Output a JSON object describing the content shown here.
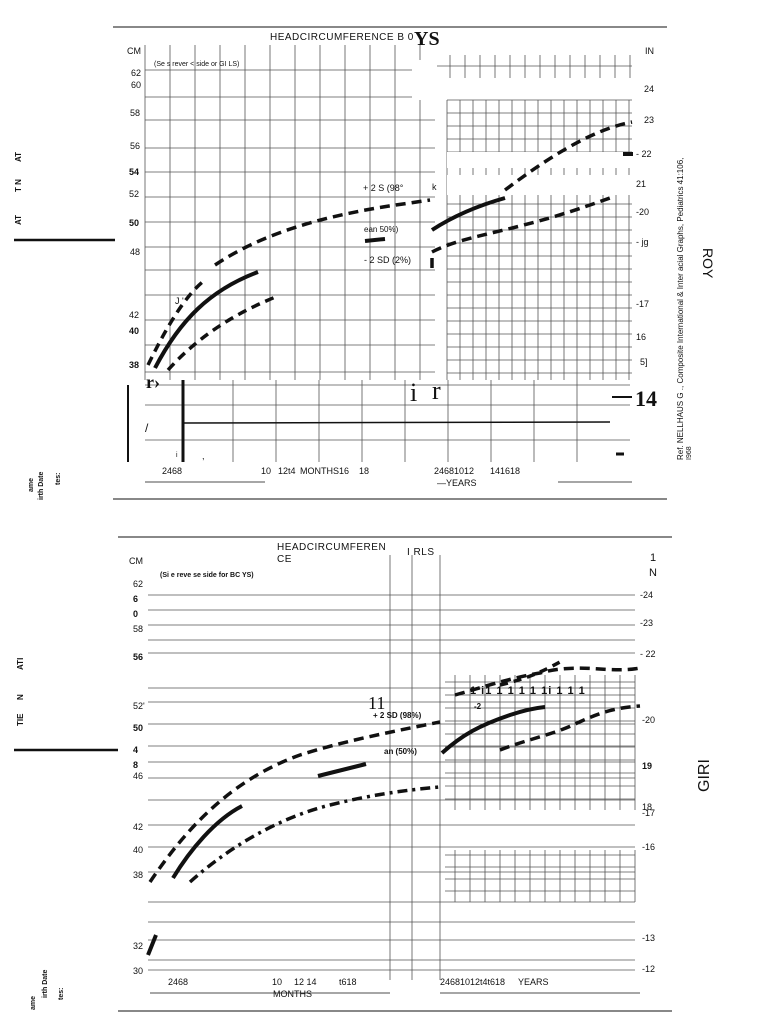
{
  "top": {
    "title": "HEADCIRCUMFERENCE B 0",
    "title_suffix": "YS",
    "unit_left": "CM",
    "unit_right": "IN",
    "note": "(Se s rever < side or GI LS)",
    "left_ticks": [
      "62",
      "60",
      "58",
      "56",
      "54",
      "52",
      "50",
      "48",
      "42",
      "40",
      "38"
    ],
    "right_ticks": [
      "24",
      "23",
      "- 22",
      "21",
      "-20",
      "- jg",
      "-17",
      "16",
      "5]",
      "14"
    ],
    "curve_labels": {
      "plus2": "+ 2 S (98°",
      "plus2_k": "k",
      "mean": "ean 50%)",
      "minus2": "- 2 SD (2%)"
    },
    "months_axis": [
      "2468",
      "10",
      "12t4",
      "MONTHS16",
      "18"
    ],
    "years_axis": [
      "24681012",
      "141618"
    ],
    "years_label": "—YEARS",
    "stray": [
      "r›",
      "i",
      "r",
      "J '",
      "/",
      "i",
      ","
    ],
    "reference": "Ref. NELLHAUS G ., Composite International & Inter acial Graphs, Pediatrics 41:106,",
    "reference_year": "I968",
    "side_label": "ROY",
    "left_margin": [
      "AT",
      "T N",
      "AT"
    ],
    "form_fields": [
      "ame",
      "irth Date",
      "tes:"
    ]
  },
  "bottom": {
    "title_line1": "HEADCIRCUMFEREN",
    "title_line2": "CE",
    "title_girls": "I RLS",
    "unit_left": "CM",
    "unit_right_1": "1",
    "unit_right_2": "N",
    "note": "(Si e reve se side for BC YS)",
    "left_ticks": [
      "62",
      "6",
      "0",
      "58",
      "56",
      "52'",
      "50",
      "4",
      "8",
      "46",
      "42",
      "40",
      "38",
      "32",
      "30"
    ],
    "right_ticks": [
      "-24",
      "-23",
      "- 22",
      "-20",
      "19",
      "18",
      "-17",
      "-16",
      "-13",
      "-12"
    ],
    "curve_labels": {
      "plus2": "+ 2 SD (98%)",
      "mean": "an (50%)",
      "eleven": "11",
      "minus2": "-2"
    },
    "tick_row": "1 i1 1 1 1 1 1i 1 1 1",
    "months_axis": [
      "2468",
      "10",
      "12 14",
      "t618"
    ],
    "months_label": "MONTHS",
    "years_axis": "24681012t4t618",
    "years_label": "YEARS",
    "side_label": "GIRI",
    "left_margin": [
      "ATI",
      "N",
      "TIE"
    ],
    "form_fields": [
      "ame",
      "irth Date",
      "tes:"
    ]
  },
  "colors": {
    "ink": "#111111",
    "grid": "#555555",
    "paper": "#ffffff"
  }
}
